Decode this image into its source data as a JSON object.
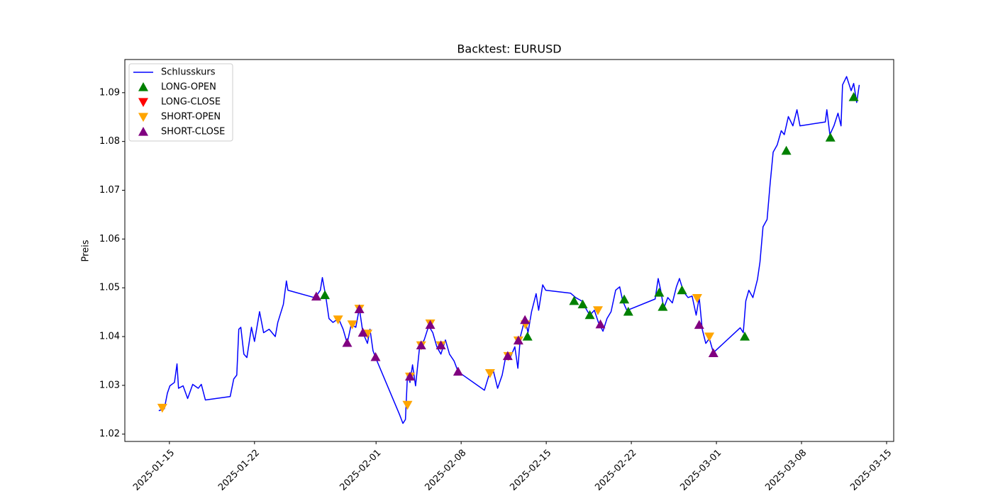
{
  "chart_data": {
    "type": "line",
    "title": "Backtest: EURUSD",
    "y_label": "Preis",
    "legend": "upper left",
    "xlim": [
      "2025-01-11T08:00",
      "2025-03-15T14:00"
    ],
    "xticks": [
      "2025-01-15",
      "2025-01-22",
      "2025-02-01",
      "2025-02-08",
      "2025-02-15",
      "2025-02-22",
      "2025-03-01",
      "2025-03-08",
      "2025-03-15"
    ],
    "ylim": [
      1.0185,
      1.0968
    ],
    "yticks": [
      1.02,
      1.03,
      1.04,
      1.05,
      1.06,
      1.07,
      1.08,
      1.09
    ],
    "series": [
      {
        "name": "Schlusskurs",
        "color": "blue",
        "marker": "none",
        "x": [
          "2025-01-14T03:00",
          "2025-01-14T14:00",
          "2025-01-14T20:00",
          "2025-01-15T01:00",
          "2025-01-15T10:00",
          "2025-01-15T15:00",
          "2025-01-15T18:00",
          "2025-01-16T03:00",
          "2025-01-16T12:00",
          "2025-01-16T22:00",
          "2025-01-17T09:00",
          "2025-01-17T15:00",
          "2025-01-17T23:00",
          "2025-01-20T00:00",
          "2025-01-20T07:00",
          "2025-01-20T13:00",
          "2025-01-20T17:00",
          "2025-01-20T21:00",
          "2025-01-21T03:00",
          "2025-01-21T09:00",
          "2025-01-21T18:00",
          "2025-01-22T00:00",
          "2025-01-22T10:00",
          "2025-01-22T18:00",
          "2025-01-23T05:00",
          "2025-01-23T17:00",
          "2025-01-23T22:00",
          "2025-01-24T09:00",
          "2025-01-24T15:00",
          "2025-01-24T18:00",
          "2025-01-26T22:00",
          "2025-01-27T02:00",
          "2025-01-27T10:00",
          "2025-01-27T14:00",
          "2025-01-27T21:00",
          "2025-01-28T03:00",
          "2025-01-28T11:00",
          "2025-01-28T22:00",
          "2025-01-29T07:00",
          "2025-01-29T15:00",
          "2025-01-29T23:00",
          "2025-01-30T08:00",
          "2025-01-30T15:00",
          "2025-01-30T22:00",
          "2025-01-31T07:00",
          "2025-01-31T12:00",
          "2025-01-31T18:00",
          "2025-01-31T23:00",
          "2025-02-02T22:00",
          "2025-02-03T05:00",
          "2025-02-03T10:00",
          "2025-02-03T14:00",
          "2025-02-03T19:00",
          "2025-02-04T00:00",
          "2025-02-04T06:00",
          "2025-02-04T14:00",
          "2025-02-04T23:00",
          "2025-02-05T08:00",
          "2025-02-05T16:00",
          "2025-02-06T00:00",
          "2025-02-06T08:00",
          "2025-02-06T17:00",
          "2025-02-07T01:00",
          "2025-02-07T10:00",
          "2025-02-07T18:00",
          "2025-02-09T22:00",
          "2025-02-10T07:00",
          "2025-02-10T16:00",
          "2025-02-11T00:00",
          "2025-02-11T09:00",
          "2025-02-11T17:00",
          "2025-02-12T01:00",
          "2025-02-12T10:00",
          "2025-02-12T16:00",
          "2025-02-12T21:00",
          "2025-02-13T06:00",
          "2025-02-13T12:00",
          "2025-02-13T19:00",
          "2025-02-14T04:00",
          "2025-02-14T09:00",
          "2025-02-14T17:00",
          "2025-02-14T23:00",
          "2025-02-17T00:00",
          "2025-02-17T10:00",
          "2025-02-17T22:00",
          "2025-02-18T06:00",
          "2025-02-18T14:00",
          "2025-02-18T23:00",
          "2025-02-19T07:00",
          "2025-02-19T16:00",
          "2025-02-20T00:00",
          "2025-02-20T08:00",
          "2025-02-20T17:00",
          "2025-02-21T01:00",
          "2025-02-21T07:00",
          "2025-02-21T15:00",
          "2025-02-21T21:00",
          "2025-02-23T23:00",
          "2025-02-24T05:00",
          "2025-02-24T10:00",
          "2025-02-24T16:00",
          "2025-02-25T00:00",
          "2025-02-25T09:00",
          "2025-02-25T17:00",
          "2025-02-25T23:00",
          "2025-02-26T07:00",
          "2025-02-26T16:00",
          "2025-02-27T00:00",
          "2025-02-27T08:00",
          "2025-02-27T14:00",
          "2025-02-27T20:00",
          "2025-02-28T03:00",
          "2025-02-28T10:00",
          "2025-02-28T18:00",
          "2025-03-02T23:00",
          "2025-03-03T05:00",
          "2025-03-03T10:00",
          "2025-03-03T16:00",
          "2025-03-04T00:00",
          "2025-03-04T09:00",
          "2025-03-04T14:00",
          "2025-03-04T20:00",
          "2025-03-05T04:00",
          "2025-03-05T10:00",
          "2025-03-05T16:00",
          "2025-03-06T00:00",
          "2025-03-06T08:00",
          "2025-03-06T14:00",
          "2025-03-06T22:00",
          "2025-03-07T07:00",
          "2025-03-07T15:00",
          "2025-03-07T21:00",
          "2025-03-09T23:00",
          "2025-03-10T02:00",
          "2025-03-10T08:00",
          "2025-03-10T16:00",
          "2025-03-11T00:00",
          "2025-03-11T06:00",
          "2025-03-11T09:00",
          "2025-03-11T17:00",
          "2025-03-12T02:00",
          "2025-03-12T07:00",
          "2025-03-12T13:00",
          "2025-03-12T18:00"
        ],
        "values": [
          1.0248,
          1.0252,
          1.0284,
          1.0299,
          1.0306,
          1.0344,
          1.0294,
          1.0299,
          1.0273,
          1.0302,
          1.0294,
          1.0302,
          1.027,
          1.0277,
          1.0313,
          1.0321,
          1.0415,
          1.0419,
          1.0364,
          1.0357,
          1.0419,
          1.039,
          1.0451,
          1.0408,
          1.0415,
          1.04,
          1.0429,
          1.0466,
          1.0514,
          1.0495,
          1.048,
          1.0483,
          1.0495,
          1.0521,
          1.048,
          1.0437,
          1.0429,
          1.0437,
          1.0415,
          1.0386,
          1.0425,
          1.0419,
          1.0458,
          1.0408,
          1.0386,
          1.0415,
          1.0371,
          1.0357,
          1.0241,
          1.0222,
          1.023,
          1.0321,
          1.0306,
          1.0342,
          1.0299,
          1.0379,
          1.0393,
          1.0422,
          1.0408,
          1.0379,
          1.0364,
          1.0393,
          1.0364,
          1.035,
          1.0328,
          1.029,
          1.0321,
          1.0328,
          1.0294,
          1.0321,
          1.0364,
          1.0357,
          1.0379,
          1.0335,
          1.04,
          1.0437,
          1.0408,
          1.0451,
          1.0488,
          1.0454,
          1.0506,
          1.0495,
          1.0489,
          1.048,
          1.0473,
          1.0458,
          1.0444,
          1.0454,
          1.0429,
          1.0411,
          1.0437,
          1.0451,
          1.0495,
          1.0502,
          1.0473,
          1.0454,
          1.0456,
          1.0477,
          1.0519,
          1.0495,
          1.0458,
          1.048,
          1.0469,
          1.0502,
          1.0519,
          1.0492,
          1.048,
          1.0483,
          1.0444,
          1.048,
          1.0415,
          1.0386,
          1.0396,
          1.0367,
          1.0418,
          1.0408,
          1.0473,
          1.0495,
          1.048,
          1.0517,
          1.0553,
          1.0625,
          1.064,
          1.0713,
          1.0778,
          1.0793,
          1.0822,
          1.0814,
          1.0851,
          1.0832,
          1.0865,
          1.0832,
          1.084,
          1.0865,
          1.0814,
          1.0832,
          1.0858,
          1.0832,
          1.0916,
          1.0933,
          1.0904,
          1.0919,
          1.088,
          1.0916
        ]
      },
      {
        "name": "LONG-OPEN",
        "color": "green",
        "marker": "triangle-up",
        "x": [
          "2025-01-27T19:00",
          "2025-02-13T11:00",
          "2025-02-17T07:00",
          "2025-02-18T00:00",
          "2025-02-18T14:00",
          "2025-02-21T10:00",
          "2025-02-21T18:00",
          "2025-02-24T07:00",
          "2025-02-24T14:00",
          "2025-02-26T04:00",
          "2025-03-03T08:00",
          "2025-03-06T18:00",
          "2025-03-10T09:00",
          "2025-03-12T07:00"
        ],
        "values": [
          1.0485,
          1.04,
          1.0473,
          1.0466,
          1.0444,
          1.0476,
          1.0451,
          1.049,
          1.0461,
          1.0495,
          1.04,
          1.0781,
          1.0808,
          1.0891
        ]
      },
      {
        "name": "LONG-CLOSE",
        "color": "red",
        "marker": "triangle-down",
        "x": [],
        "values": []
      },
      {
        "name": "SHORT-OPEN",
        "color": "orange",
        "marker": "triangle-down",
        "x": [
          "2025-01-14T10:00",
          "2025-01-28T21:00",
          "2025-01-30T01:00",
          "2025-01-30T15:00",
          "2025-01-31T07:00",
          "2025-02-03T14:00",
          "2025-02-03T19:00",
          "2025-02-04T17:00",
          "2025-02-05T11:00",
          "2025-02-06T08:00",
          "2025-02-10T09:00",
          "2025-02-11T21:00",
          "2025-02-12T17:00",
          "2025-02-13T07:00",
          "2025-02-19T06:00",
          "2025-02-27T10:00",
          "2025-02-28T10:00"
        ],
        "values": [
          1.0254,
          1.0435,
          1.0425,
          1.0457,
          1.0406,
          1.026,
          1.0318,
          1.0382,
          1.0427,
          1.0382,
          1.0325,
          1.036,
          1.0392,
          1.0425,
          1.0454,
          1.0479,
          1.04
        ]
      },
      {
        "name": "SHORT-CLOSE",
        "color": "purple",
        "marker": "triangle-up",
        "x": [
          "2025-01-27T02:00",
          "2025-01-29T15:00",
          "2025-01-30T15:00",
          "2025-01-30T22:00",
          "2025-01-31T23:00",
          "2025-02-03T19:00",
          "2025-02-04T17:00",
          "2025-02-05T11:00",
          "2025-02-06T08:00",
          "2025-02-07T18:00",
          "2025-02-11T20:00",
          "2025-02-12T17:00",
          "2025-02-13T06:00",
          "2025-02-19T11:00",
          "2025-02-27T14:00",
          "2025-02-28T18:00"
        ],
        "values": [
          1.0482,
          1.0387,
          1.0456,
          1.0408,
          1.0358,
          1.0318,
          1.0382,
          1.0424,
          1.0382,
          1.0328,
          1.036,
          1.0392,
          1.0434,
          1.0425,
          1.0424,
          1.0366
        ]
      }
    ]
  }
}
